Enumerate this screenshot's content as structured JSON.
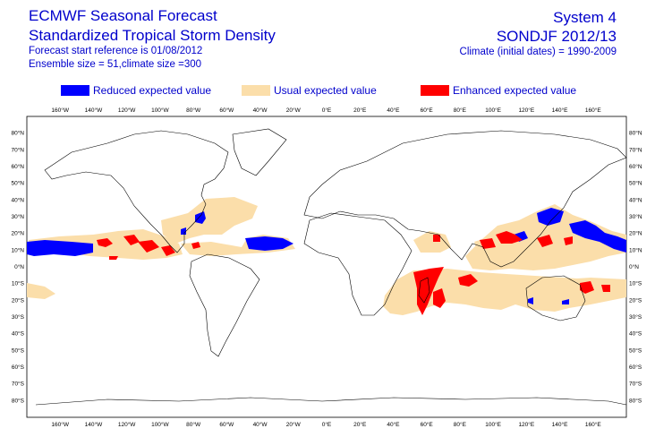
{
  "header": {
    "title_left_1": "ECMWF Seasonal Forecast",
    "title_left_2": "Standardized Tropical Storm Density",
    "sub_left_1": "Forecast start reference is 01/08/2012",
    "sub_left_2": "Ensemble size = 51,climate size =300",
    "title_right_1": "System 4",
    "title_right_2": "SONDJF 2012/13",
    "sub_right_1": "Climate (initial dates) = 1990-2009"
  },
  "legend": [
    {
      "label": "Reduced expected value",
      "color": "#0000ff"
    },
    {
      "label": "Usual expected value",
      "color": "#fbdeaa"
    },
    {
      "label": "Enhanced expected value",
      "color": "#ff0000"
    }
  ],
  "map": {
    "lon_ticks": [
      "160°W",
      "140°W",
      "120°W",
      "100°W",
      "80°W",
      "60°W",
      "40°W",
      "20°W",
      "0°E",
      "20°E",
      "40°E",
      "60°E",
      "80°E",
      "100°E",
      "120°E",
      "140°E",
      "160°E"
    ],
    "lat_ticks": [
      "80°N",
      "70°N",
      "60°N",
      "50°N",
      "40°N",
      "30°N",
      "20°N",
      "10°N",
      "0°N",
      "10°S",
      "20°S",
      "30°S",
      "40°S",
      "50°S",
      "60°S",
      "70°S",
      "80°S"
    ],
    "colors": {
      "reduced": "#0000ff",
      "usual": "#fbdeaa",
      "enhanced": "#ff0000",
      "coast": "#000000"
    }
  }
}
